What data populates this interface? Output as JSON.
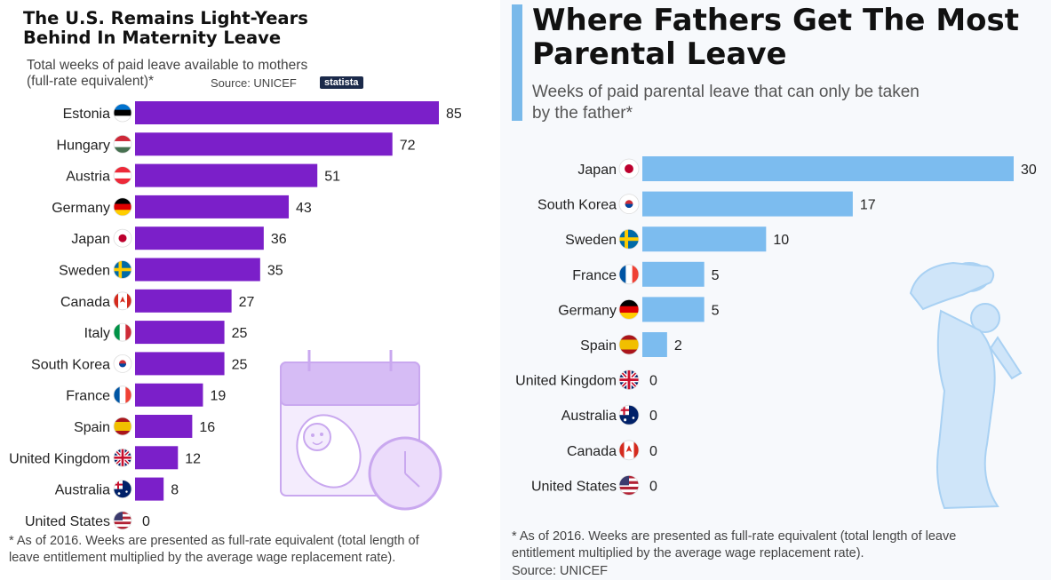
{
  "left": {
    "title": "The U.S. Remains Light-Years\nBehind In Maternity Leave",
    "subtitle": "Total weeks of paid leave available to mothers\n(full-rate equivalent)*",
    "source": "Source: UNICEF",
    "brand": "statista",
    "footnote": "* As of 2016. Weeks are presented as full-rate equivalent (total length of\nleave entitlement multiplied by the average wage replacement rate).",
    "illustration_icons": [
      "calendar-icon",
      "baby-icon",
      "clock-icon"
    ]
  },
  "right": {
    "title": "Where Fathers Get The Most\nParental Leave",
    "subtitle": "Weeks of paid parental leave that can only be taken\nby the father*",
    "footnote": "* As of 2016. Weeks are presented as full-rate equivalent (total length of leave\nentitlement multiplied by the average wage replacement rate).",
    "source": "Source: UNICEF",
    "illustration_icons": [
      "father-and-child-silhouette-icon"
    ]
  },
  "colors": {
    "maternity_bar": "#7b1fc9",
    "paternity_bar": "#7cbcef",
    "accent_stripe": "#79b9ea",
    "illustration_purple": "#c9a8ef",
    "illustration_blue": "#bcdcf7"
  },
  "chart_data": [
    {
      "type": "bar",
      "orientation": "horizontal",
      "categories": [
        "Estonia",
        "Hungary",
        "Austria",
        "Germany",
        "Japan",
        "Sweden",
        "Canada",
        "Italy",
        "South Korea",
        "France",
        "Spain",
        "United Kingdom",
        "Australia",
        "United States"
      ],
      "values": [
        85,
        72,
        51,
        43,
        36,
        35,
        27,
        25,
        25,
        19,
        16,
        12,
        8,
        0
      ],
      "flag_icons": [
        "estonia-flag-icon",
        "hungary-flag-icon",
        "austria-flag-icon",
        "germany-flag-icon",
        "japan-flag-icon",
        "sweden-flag-icon",
        "canada-flag-icon",
        "italy-flag-icon",
        "south-korea-flag-icon",
        "france-flag-icon",
        "spain-flag-icon",
        "united-kingdom-flag-icon",
        "australia-flag-icon",
        "united-states-flag-icon"
      ],
      "title": "The U.S. Remains Light-Years Behind In Maternity Leave",
      "subtitle": "Total weeks of paid leave available to mothers (full-rate equivalent)*",
      "xlim": [
        0,
        85
      ],
      "data_labels": true,
      "grid": false
    },
    {
      "type": "bar",
      "orientation": "horizontal",
      "categories": [
        "Japan",
        "South Korea",
        "Sweden",
        "France",
        "Germany",
        "Spain",
        "United Kingdom",
        "Australia",
        "Canada",
        "United States"
      ],
      "values": [
        30,
        17,
        10,
        5,
        5,
        2,
        0,
        0,
        0,
        0
      ],
      "flag_icons": [
        "japan-flag-icon",
        "south-korea-flag-icon",
        "sweden-flag-icon",
        "france-flag-icon",
        "germany-flag-icon",
        "spain-flag-icon",
        "united-kingdom-flag-icon",
        "australia-flag-icon",
        "canada-flag-icon",
        "united-states-flag-icon"
      ],
      "title": "Where Fathers Get The Most Parental Leave",
      "subtitle": "Weeks of paid parental leave that can only be taken by the father*",
      "xlim": [
        0,
        30
      ],
      "data_labels": true,
      "grid": false
    }
  ]
}
